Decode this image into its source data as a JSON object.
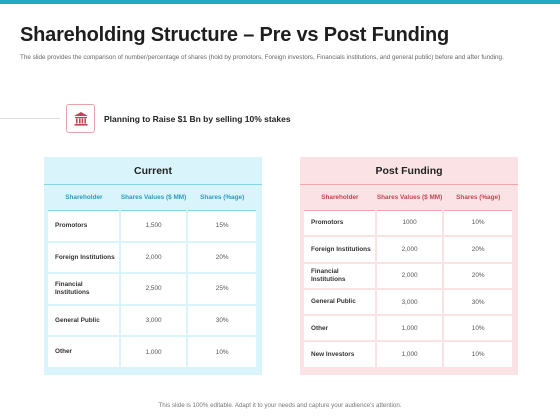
{
  "title": "Shareholding Structure – Pre vs Post Funding",
  "subtitle": "The slide provides the comparison of number/percentage of shares (hold by promotors, Foreign investors, Financials institutions, and general public) before and after funding.",
  "plan": {
    "icon": "bank-icon",
    "text": "Planning to Raise $1 Bn by selling 10% stakes"
  },
  "current": {
    "heading": "Current",
    "headers": [
      "Shareholder",
      "Shares Values ($ MM)",
      "Shares (%age)"
    ],
    "rows": [
      [
        "Promotors",
        "1,500",
        "15%"
      ],
      [
        "Foreign Institutions",
        "2,000",
        "20%"
      ],
      [
        "Financial Institutions",
        "2,500",
        "25%"
      ],
      [
        "General Public",
        "3,000",
        "30%"
      ],
      [
        "Other",
        "1,000",
        "10%"
      ]
    ]
  },
  "post": {
    "heading": "Post Funding",
    "headers": [
      "Shareholder",
      "Shares Values ($ MM)",
      "Shares (%age)"
    ],
    "rows": [
      [
        "Promotors",
        "1000",
        "10%"
      ],
      [
        "Foreign Institutions",
        "2,000",
        "20%"
      ],
      [
        "Financial Institutions",
        "2,000",
        "20%"
      ],
      [
        "General Public",
        "3,000",
        "30%"
      ],
      [
        "Other",
        "1,000",
        "10%"
      ],
      [
        "New Investors",
        "1,000",
        "10%"
      ]
    ]
  },
  "footer": "This slide is 100% editable. Adapt it to your needs and capture your audience's attention.",
  "colors": {
    "accent_blue": "#24a9c5",
    "current_bg": "#d9f4fa",
    "post_bg": "#fbe3e5",
    "post_accent": "#c64351"
  }
}
